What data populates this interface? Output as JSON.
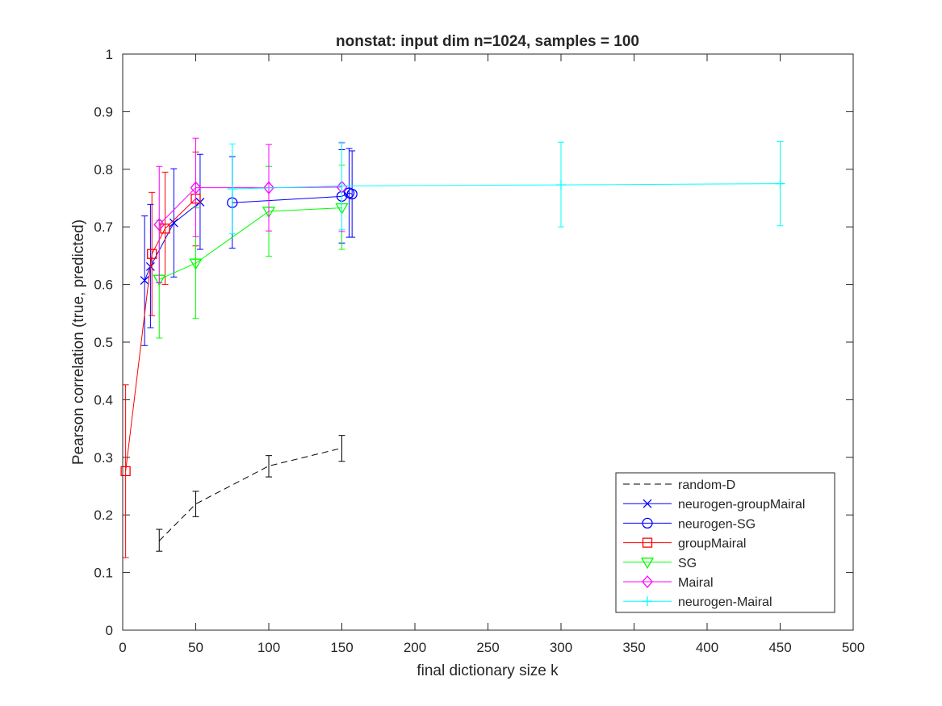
{
  "chart_data": {
    "type": "line",
    "title": "nonstat: input dim n=1024, samples = 100",
    "xlabel": "final dictionary size k",
    "ylabel": "Pearson correlation (true, predicted)",
    "xlim": [
      0,
      500
    ],
    "ylim": [
      0,
      1
    ],
    "xticks": [
      0,
      50,
      100,
      150,
      200,
      250,
      300,
      350,
      400,
      450,
      500
    ],
    "yticks": [
      0,
      0.1,
      0.2,
      0.3,
      0.4,
      0.5,
      0.6,
      0.7,
      0.8,
      0.9,
      1
    ],
    "xtick_labels": [
      "0",
      "50",
      "100",
      "150",
      "200",
      "250",
      "300",
      "350",
      "400",
      "450",
      "500"
    ],
    "ytick_labels": [
      "0",
      "0.1",
      "0.2",
      "0.3",
      "0.4",
      "0.5",
      "0.6",
      "0.7",
      "0.8",
      "0.9",
      "1"
    ],
    "grid": false,
    "legend_position": "bottom-right",
    "series": [
      {
        "name": "random-D",
        "color": "#000000",
        "dash": "dashed",
        "marker": "none",
        "points": [
          {
            "x": 25,
            "y": 0.155,
            "lo": 0.137,
            "hi": 0.175
          },
          {
            "x": 50,
            "y": 0.219,
            "lo": 0.197,
            "hi": 0.241
          },
          {
            "x": 100,
            "y": 0.285,
            "lo": 0.266,
            "hi": 0.303
          },
          {
            "x": 150,
            "y": 0.316,
            "lo": 0.293,
            "hi": 0.338
          }
        ]
      },
      {
        "name": "neurogen-groupMairal",
        "color": "#0000ff",
        "dash": "solid",
        "marker": "x",
        "points": [
          {
            "x": 15,
            "y": 0.607,
            "lo": 0.494,
            "hi": 0.719
          },
          {
            "x": 19,
            "y": 0.631,
            "lo": 0.525,
            "hi": 0.739
          },
          {
            "x": 35,
            "y": 0.707,
            "lo": 0.613,
            "hi": 0.801
          },
          {
            "x": 53,
            "y": 0.743,
            "lo": 0.661,
            "hi": 0.826
          }
        ]
      },
      {
        "name": "neurogen-SG",
        "color": "#0000ff",
        "dash": "solid",
        "marker": "circle",
        "points": [
          {
            "x": 75,
            "y": 0.742,
            "lo": 0.663,
            "hi": 0.822
          },
          {
            "x": 150,
            "y": 0.753,
            "lo": 0.672,
            "hi": 0.834
          },
          {
            "x": 155,
            "y": 0.759,
            "lo": 0.682,
            "hi": 0.836
          },
          {
            "x": 157,
            "y": 0.757,
            "lo": 0.682,
            "hi": 0.832
          }
        ]
      },
      {
        "name": "groupMairal",
        "color": "#ff0000",
        "dash": "solid",
        "marker": "square",
        "points": [
          {
            "x": 2,
            "y": 0.276,
            "lo": 0.126,
            "hi": 0.426
          },
          {
            "x": 20,
            "y": 0.653,
            "lo": 0.546,
            "hi": 0.76
          },
          {
            "x": 29,
            "y": 0.697,
            "lo": 0.6,
            "hi": 0.795
          },
          {
            "x": 50,
            "y": 0.749,
            "lo": 0.667,
            "hi": 0.83
          }
        ]
      },
      {
        "name": "SG",
        "color": "#00ff00",
        "dash": "solid",
        "marker": "triangle-down",
        "points": [
          {
            "x": 25,
            "y": 0.609,
            "lo": 0.507,
            "hi": 0.711
          },
          {
            "x": 50,
            "y": 0.637,
            "lo": 0.541,
            "hi": 0.733
          },
          {
            "x": 100,
            "y": 0.727,
            "lo": 0.649,
            "hi": 0.805
          },
          {
            "x": 150,
            "y": 0.733,
            "lo": 0.661,
            "hi": 0.807
          }
        ]
      },
      {
        "name": "Mairal",
        "color": "#ff00ff",
        "dash": "solid",
        "marker": "diamond",
        "points": [
          {
            "x": 25,
            "y": 0.704,
            "lo": 0.603,
            "hi": 0.805
          },
          {
            "x": 50,
            "y": 0.768,
            "lo": 0.683,
            "hi": 0.854
          },
          {
            "x": 100,
            "y": 0.768,
            "lo": 0.693,
            "hi": 0.843
          },
          {
            "x": 150,
            "y": 0.769,
            "lo": 0.692,
            "hi": 0.846
          }
        ]
      },
      {
        "name": "neurogen-Mairal",
        "color": "#00ffff",
        "dash": "solid",
        "marker": "plus",
        "points": [
          {
            "x": 75,
            "y": 0.766,
            "lo": 0.688,
            "hi": 0.844
          },
          {
            "x": 150,
            "y": 0.771,
            "lo": 0.695,
            "hi": 0.847
          },
          {
            "x": 300,
            "y": 0.773,
            "lo": 0.7,
            "hi": 0.847
          },
          {
            "x": 450,
            "y": 0.775,
            "lo": 0.702,
            "hi": 0.848
          }
        ]
      }
    ]
  }
}
